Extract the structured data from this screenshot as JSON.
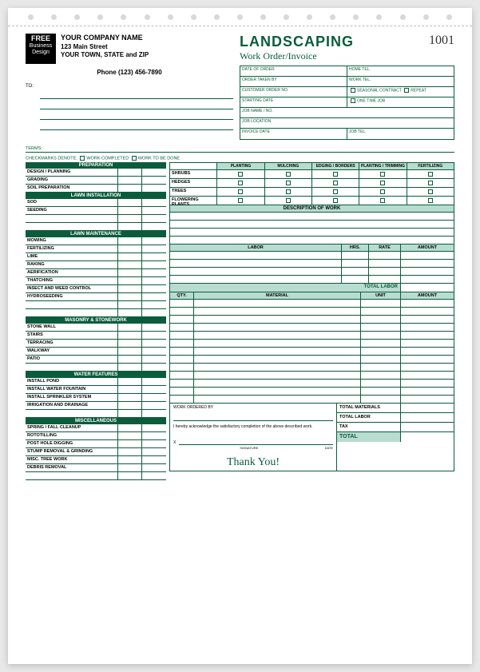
{
  "logo": {
    "free": "FREE",
    "biz": "Business",
    "des": "Design"
  },
  "company": {
    "name": "YOUR COMPANY NAME",
    "addr": "123 Main Street",
    "city": "YOUR TOWN, STATE and ZIP",
    "phone": "Phone (123) 456-7890"
  },
  "to": "TO:",
  "title": {
    "t1": "LANDSCAPING",
    "t2": "Work Order/Invoice"
  },
  "number": "1001",
  "info": {
    "date_order": "DATE OF ORDER",
    "home_tel": "HOME TEL.",
    "order_taken": "ORDER TAKEN BY",
    "work_tel": "WORK TEL.",
    "cust_order": "CUSTOMER ORDER NO.",
    "seasonal": "SEASONAL CONTRACT",
    "repeat": "REPEAT",
    "start_date": "STARTING DATE",
    "one_time": "ONE TIME JOB",
    "job_name": "JOB NAME / NO.",
    "job_loc": "JOB LOCATION",
    "inv_date": "INVOICE DATE",
    "job_tel": "JOB TEL."
  },
  "terms": "TERMS:",
  "checkmarks": {
    "label": "CHECKMARKS DENOTE:",
    "opt1": "WORK COMPLETED",
    "opt2": "WORK TO BE DONE"
  },
  "sections": {
    "prep": "PREPARATION",
    "prep_items": [
      "DESIGN / PLANNING",
      "GRADING",
      "SOIL PREPARATION"
    ],
    "lawn_inst": "LAWN INSTALLATION",
    "lawn_inst_items": [
      "SOD",
      "SEEDING"
    ],
    "lawn_maint": "LAWN MAINTENANCE",
    "lawn_maint_items": [
      "MOWING",
      "FERTILIZING",
      "LIME",
      "RAKING",
      "AERIFICATION",
      "THATCHING",
      "INSECT AND WEED CONTROL",
      "HYDROSEEDING"
    ],
    "masonry": "MASONRY & STONEWORK",
    "masonry_items": [
      "STONE WALL",
      "STAIRS",
      "TERRACING",
      "WALKWAY",
      "PATIO"
    ],
    "water": "WATER FEATURES",
    "water_items": [
      "INSTALL POND",
      "INSTALL WATER FOUNTAIN",
      "INSTALL SPRINKLER SYSTEM",
      "IRRIGATION AND DRAINAGE"
    ],
    "misc": "MISCELLANEOUS",
    "misc_items": [
      "SPRING / FALL CLEANUP",
      "ROTOTILLING",
      "POST HOLE DIGGING",
      "STUMP REMOVAL & GRINDING",
      "MISC. TREE WORK",
      "DEBRIS REMOVAL"
    ]
  },
  "services": {
    "headers": [
      "",
      "PLANTING",
      "MULCHING",
      "EDGING / BORDERS",
      "PLANTING / TRIMMING",
      "FERTILIZING"
    ],
    "rows": [
      "SHRUBS",
      "HEDGES",
      "TREES",
      "FLOWERING PLANTS"
    ]
  },
  "desc": "DESCRIPTION OF WORK",
  "labor": {
    "headers": [
      "LABOR",
      "HRS.",
      "RATE",
      "AMOUNT"
    ],
    "total": "TOTAL LABOR"
  },
  "material": {
    "headers": [
      "QTY.",
      "MATERIAL",
      "UNIT",
      "AMOUNT"
    ]
  },
  "bottom": {
    "ordered": "WORK ORDERED BY",
    "ack": "I hereby acknowledge the satisfactory completion of the above described work.",
    "x": "X",
    "sig": "SIGNATURE",
    "date": "DATE"
  },
  "totals": {
    "mat": "TOTAL MATERIALS",
    "lab": "TOTAL LABOR",
    "tax": "TAX",
    "total": "TOTAL"
  },
  "thanks": "Thank You!",
  "colors": {
    "green": "#0a5c3c",
    "tint": "#b8dcd0"
  }
}
